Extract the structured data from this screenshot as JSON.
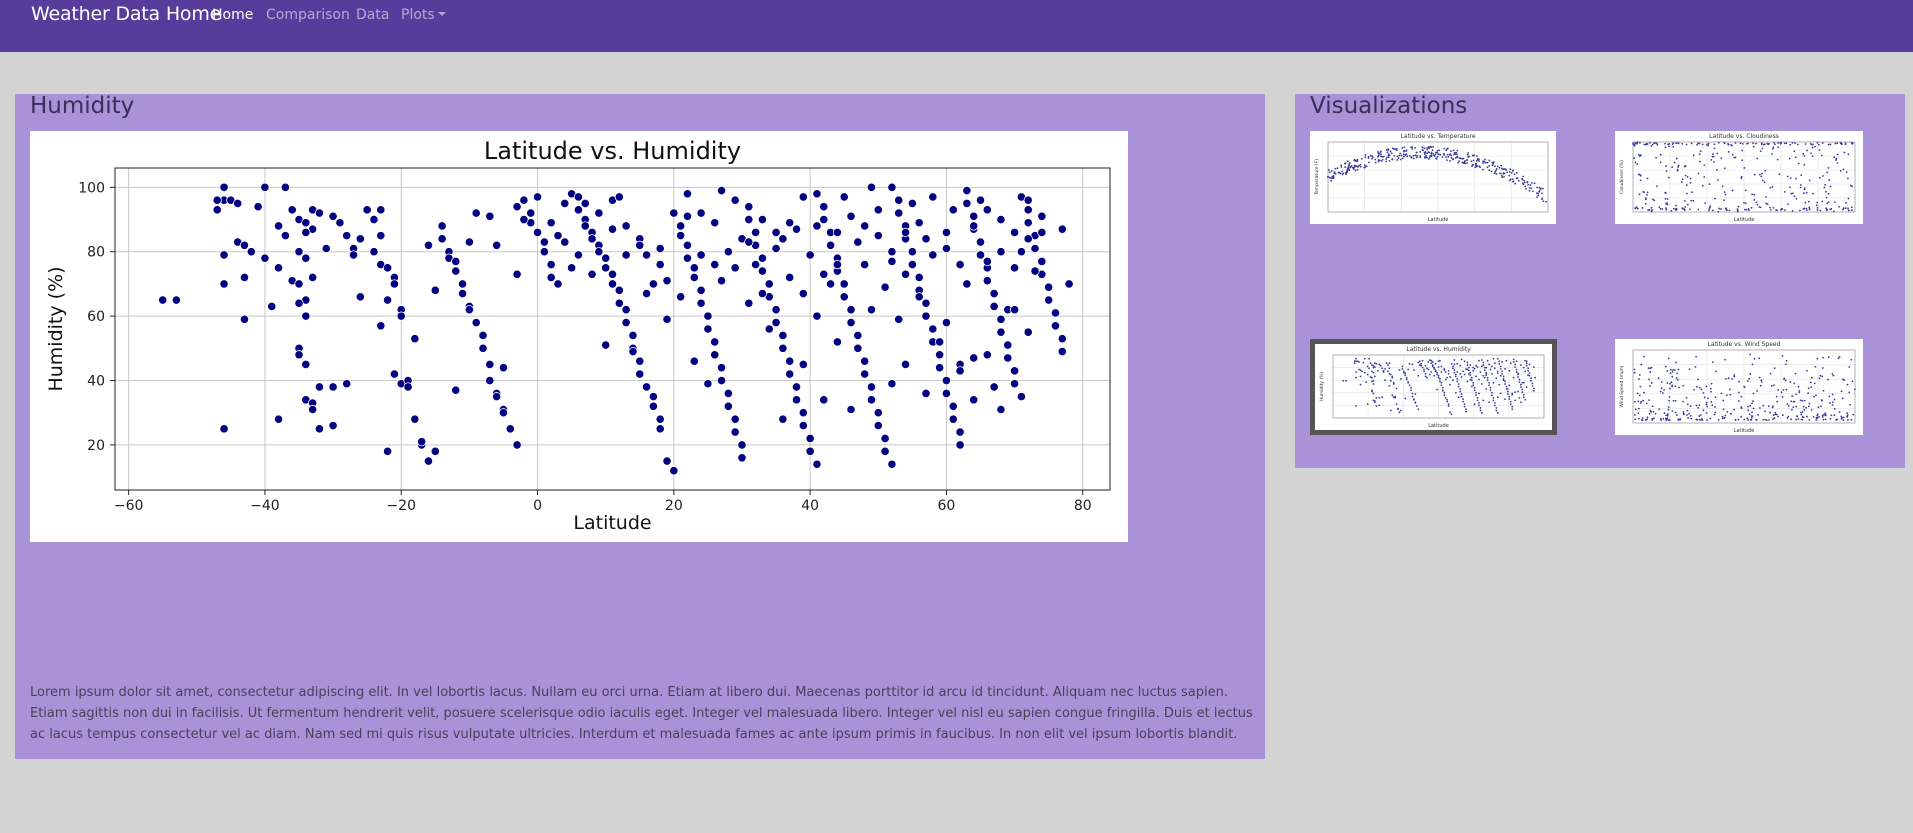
{
  "nav": {
    "brand": "Weather Data Home",
    "links": [
      {
        "label": "Home",
        "active": true
      },
      {
        "label": "Comparison",
        "active": false
      },
      {
        "label": "Data",
        "active": false
      },
      {
        "label": "Plots",
        "active": false
      }
    ],
    "color": "#563d9c"
  },
  "main": {
    "title": "Humidity",
    "body_text": "Lorem ipsum dolor sit amet, consectetur adipiscing elit. In vel lobortis lacus. Nullam eu orci urna. Etiam at libero dui. Maecenas porttitor id arcu id tincidunt. Aliquam nec luctus sapien. Etiam sagittis non dui in facilisis. Ut fermentum hendrerit velit, posuere scelerisque odio iaculis eget. Integer vel malesuada libero. Integer vel nisl eu sapien congue fringilla. Duis et lectus ac lacus tempus consectetur vel ac diam. Nam sed mi quis risus vulputate ultricies. Interdum et malesuada fames ac ante ipsum primis in faucibus. In non elit vel ipsum lobortis blandit."
  },
  "sidebar": {
    "title": "Visualizations",
    "thumbnails": [
      {
        "title": "Latitude vs. Temperature",
        "ylabel": "Temperature (F)",
        "xlabel": "Latitude",
        "selected": false
      },
      {
        "title": "Latitude vs. Cloudiness",
        "ylabel": "Cloudiness (%)",
        "xlabel": "Latitude",
        "selected": false
      },
      {
        "title": "Latitude vs. Humidity",
        "ylabel": "Humidity (%)",
        "xlabel": "Latitude",
        "selected": true
      },
      {
        "title": "Latitude vs. Wind Speed",
        "ylabel": "Wind Speed (mph)",
        "xlabel": "Latitude",
        "selected": false
      }
    ]
  },
  "chart_data": {
    "type": "scatter",
    "title": "Latitude vs. Humidity",
    "xlabel": "Latitude",
    "ylabel": "Humidity (%)",
    "xlim": [
      -62,
      84
    ],
    "ylim": [
      6,
      106
    ],
    "xticks": [
      -60,
      -40,
      -20,
      0,
      20,
      40,
      60,
      80
    ],
    "yticks": [
      20,
      40,
      60,
      80,
      100
    ],
    "grid": true,
    "marker_color": "#000080",
    "points": [
      [
        -55,
        65
      ],
      [
        -53,
        65
      ],
      [
        -46,
        100
      ],
      [
        -46,
        96
      ],
      [
        -45,
        96
      ],
      [
        -47,
        93
      ],
      [
        -46,
        79
      ],
      [
        -46,
        70
      ],
      [
        -46,
        25
      ],
      [
        -44,
        83
      ],
      [
        -43,
        82
      ],
      [
        -42,
        80
      ],
      [
        -43,
        72
      ],
      [
        -43,
        59
      ],
      [
        -41,
        94
      ],
      [
        -39,
        63
      ],
      [
        -38,
        75
      ],
      [
        -38,
        88
      ],
      [
        -37,
        100
      ],
      [
        -37,
        85
      ],
      [
        -36,
        93
      ],
      [
        -35,
        90
      ],
      [
        -34,
        89
      ],
      [
        -36,
        71
      ],
      [
        -35,
        80
      ],
      [
        -34,
        78
      ],
      [
        -33,
        93
      ],
      [
        -32,
        92
      ],
      [
        -33,
        87
      ],
      [
        -34,
        86
      ],
      [
        -35,
        70
      ],
      [
        -33,
        72
      ],
      [
        -34,
        65
      ],
      [
        -35,
        64
      ],
      [
        -34,
        60
      ],
      [
        -35,
        50
      ],
      [
        -35,
        48
      ],
      [
        -34,
        45
      ],
      [
        -34,
        34
      ],
      [
        -33,
        33
      ],
      [
        -33,
        31
      ],
      [
        -32,
        38
      ],
      [
        -32,
        25
      ],
      [
        -30,
        26
      ],
      [
        -30,
        38
      ],
      [
        -29,
        89
      ],
      [
        -28,
        85
      ],
      [
        -27,
        81
      ],
      [
        -27,
        79
      ],
      [
        -26,
        84
      ],
      [
        -25,
        93
      ],
      [
        -24,
        90
      ],
      [
        -23,
        93
      ],
      [
        -23,
        85
      ],
      [
        -23,
        76
      ],
      [
        -22,
        75
      ],
      [
        -21,
        72
      ],
      [
        -22,
        65
      ],
      [
        -23,
        57
      ],
      [
        -21,
        70
      ],
      [
        -20,
        62
      ],
      [
        -20,
        60
      ],
      [
        -21,
        42
      ],
      [
        -20,
        39
      ],
      [
        -19,
        40
      ],
      [
        -19,
        38
      ],
      [
        -18,
        28
      ],
      [
        -17,
        20
      ],
      [
        -17,
        21
      ],
      [
        -16,
        15
      ],
      [
        -15,
        18
      ],
      [
        -14,
        88
      ],
      [
        -14,
        84
      ],
      [
        -13,
        80
      ],
      [
        -13,
        78
      ],
      [
        -12,
        77
      ],
      [
        -12,
        74
      ],
      [
        -11,
        70
      ],
      [
        -11,
        67
      ],
      [
        -10,
        63
      ],
      [
        -10,
        62
      ],
      [
        -9,
        58
      ],
      [
        -8,
        54
      ],
      [
        -8,
        50
      ],
      [
        -7,
        45
      ],
      [
        -7,
        40
      ],
      [
        -6,
        36
      ],
      [
        -6,
        35
      ],
      [
        -5,
        31
      ],
      [
        -5,
        30
      ],
      [
        -4,
        25
      ],
      [
        -3,
        20
      ],
      [
        -2,
        96
      ],
      [
        -1,
        92
      ],
      [
        -1,
        89
      ],
      [
        0,
        86
      ],
      [
        1,
        83
      ],
      [
        1,
        80
      ],
      [
        2,
        76
      ],
      [
        2,
        72
      ],
      [
        3,
        70
      ],
      [
        4,
        95
      ],
      [
        5,
        98
      ],
      [
        6,
        97
      ],
      [
        6,
        93
      ],
      [
        7,
        90
      ],
      [
        7,
        88
      ],
      [
        8,
        86
      ],
      [
        8,
        84
      ],
      [
        9,
        82
      ],
      [
        9,
        80
      ],
      [
        10,
        78
      ],
      [
        10,
        75
      ],
      [
        11,
        73
      ],
      [
        11,
        70
      ],
      [
        12,
        68
      ],
      [
        12,
        64
      ],
      [
        13,
        62
      ],
      [
        13,
        58
      ],
      [
        14,
        54
      ],
      [
        14,
        50
      ],
      [
        15,
        46
      ],
      [
        15,
        42
      ],
      [
        16,
        38
      ],
      [
        17,
        35
      ],
      [
        17,
        32
      ],
      [
        18,
        28
      ],
      [
        18,
        25
      ],
      [
        19,
        15
      ],
      [
        20,
        12
      ],
      [
        21,
        88
      ],
      [
        21,
        85
      ],
      [
        22,
        82
      ],
      [
        22,
        78
      ],
      [
        23,
        75
      ],
      [
        23,
        72
      ],
      [
        24,
        68
      ],
      [
        24,
        64
      ],
      [
        25,
        60
      ],
      [
        25,
        56
      ],
      [
        26,
        52
      ],
      [
        26,
        48
      ],
      [
        27,
        44
      ],
      [
        27,
        40
      ],
      [
        28,
        36
      ],
      [
        28,
        32
      ],
      [
        29,
        28
      ],
      [
        29,
        24
      ],
      [
        30,
        20
      ],
      [
        30,
        16
      ],
      [
        31,
        94
      ],
      [
        31,
        90
      ],
      [
        32,
        86
      ],
      [
        32,
        82
      ],
      [
        33,
        78
      ],
      [
        33,
        74
      ],
      [
        34,
        70
      ],
      [
        34,
        66
      ],
      [
        35,
        62
      ],
      [
        35,
        58
      ],
      [
        36,
        54
      ],
      [
        36,
        50
      ],
      [
        37,
        46
      ],
      [
        37,
        42
      ],
      [
        38,
        38
      ],
      [
        38,
        34
      ],
      [
        39,
        30
      ],
      [
        39,
        26
      ],
      [
        40,
        22
      ],
      [
        40,
        18
      ],
      [
        41,
        14
      ],
      [
        41,
        98
      ],
      [
        42,
        94
      ],
      [
        42,
        90
      ],
      [
        43,
        86
      ],
      [
        43,
        82
      ],
      [
        44,
        78
      ],
      [
        44,
        74
      ],
      [
        45,
        70
      ],
      [
        45,
        66
      ],
      [
        46,
        62
      ],
      [
        46,
        58
      ],
      [
        47,
        54
      ],
      [
        47,
        50
      ],
      [
        48,
        46
      ],
      [
        48,
        42
      ],
      [
        49,
        38
      ],
      [
        49,
        34
      ],
      [
        50,
        30
      ],
      [
        50,
        26
      ],
      [
        51,
        22
      ],
      [
        51,
        18
      ],
      [
        52,
        14
      ],
      [
        52,
        100
      ],
      [
        53,
        96
      ],
      [
        53,
        92
      ],
      [
        54,
        88
      ],
      [
        54,
        84
      ],
      [
        55,
        80
      ],
      [
        55,
        76
      ],
      [
        56,
        72
      ],
      [
        56,
        68
      ],
      [
        57,
        64
      ],
      [
        57,
        60
      ],
      [
        58,
        56
      ],
      [
        58,
        52
      ],
      [
        59,
        48
      ],
      [
        59,
        44
      ],
      [
        60,
        40
      ],
      [
        60,
        36
      ],
      [
        61,
        32
      ],
      [
        61,
        28
      ],
      [
        62,
        24
      ],
      [
        62,
        20
      ],
      [
        63,
        99
      ],
      [
        63,
        95
      ],
      [
        64,
        91
      ],
      [
        64,
        87
      ],
      [
        65,
        83
      ],
      [
        65,
        79
      ],
      [
        66,
        75
      ],
      [
        66,
        71
      ],
      [
        67,
        67
      ],
      [
        67,
        63
      ],
      [
        68,
        59
      ],
      [
        68,
        55
      ],
      [
        69,
        51
      ],
      [
        69,
        47
      ],
      [
        70,
        43
      ],
      [
        70,
        39
      ],
      [
        71,
        35
      ],
      [
        71,
        97
      ],
      [
        72,
        93
      ],
      [
        72,
        89
      ],
      [
        73,
        85
      ],
      [
        73,
        81
      ],
      [
        74,
        77
      ],
      [
        74,
        73
      ],
      [
        75,
        69
      ],
      [
        75,
        65
      ],
      [
        76,
        61
      ],
      [
        76,
        57
      ],
      [
        77,
        53
      ],
      [
        77,
        49
      ],
      [
        78,
        70
      ],
      [
        77,
        87
      ],
      [
        -44,
        95
      ],
      [
        -40,
        78
      ],
      [
        -31,
        81
      ],
      [
        -26,
        66
      ],
      [
        -18,
        53
      ],
      [
        -15,
        68
      ],
      [
        -9,
        92
      ],
      [
        -6,
        82
      ],
      [
        -3,
        94
      ],
      [
        3,
        85
      ],
      [
        5,
        75
      ],
      [
        7,
        95
      ],
      [
        9,
        92
      ],
      [
        11,
        96
      ],
      [
        13,
        88
      ],
      [
        15,
        84
      ],
      [
        16,
        79
      ],
      [
        18,
        76
      ],
      [
        20,
        92
      ],
      [
        22,
        98
      ],
      [
        24,
        92
      ],
      [
        26,
        89
      ],
      [
        27,
        99
      ],
      [
        29,
        96
      ],
      [
        30,
        84
      ],
      [
        32,
        76
      ],
      [
        33,
        67
      ],
      [
        35,
        81
      ],
      [
        36,
        84
      ],
      [
        37,
        72
      ],
      [
        38,
        87
      ],
      [
        39,
        67
      ],
      [
        40,
        79
      ],
      [
        41,
        60
      ],
      [
        43,
        70
      ],
      [
        44,
        86
      ],
      [
        45,
        97
      ],
      [
        47,
        83
      ],
      [
        48,
        76
      ],
      [
        49,
        100
      ],
      [
        50,
        93
      ],
      [
        51,
        69
      ],
      [
        52,
        80
      ],
      [
        53,
        59
      ],
      [
        54,
        73
      ],
      [
        55,
        95
      ],
      [
        56,
        66
      ],
      [
        57,
        84
      ],
      [
        58,
        97
      ],
      [
        59,
        52
      ],
      [
        60,
        81
      ],
      [
        61,
        93
      ],
      [
        62,
        45
      ],
      [
        63,
        70
      ],
      [
        64,
        47
      ],
      [
        65,
        96
      ],
      [
        66,
        77
      ],
      [
        67,
        38
      ],
      [
        68,
        90
      ],
      [
        69,
        62
      ],
      [
        70,
        86
      ],
      [
        71,
        80
      ],
      [
        72,
        96
      ],
      [
        73,
        74
      ],
      [
        -38,
        28
      ],
      [
        -28,
        39
      ],
      [
        -22,
        18
      ],
      [
        -12,
        37
      ],
      [
        -5,
        44
      ],
      [
        -3,
        73
      ],
      [
        2,
        89
      ],
      [
        4,
        83
      ],
      [
        10,
        51
      ],
      [
        12,
        97
      ],
      [
        14,
        49
      ],
      [
        16,
        67
      ],
      [
        18,
        81
      ],
      [
        19,
        59
      ],
      [
        21,
        66
      ],
      [
        23,
        46
      ],
      [
        25,
        39
      ],
      [
        28,
        80
      ],
      [
        31,
        64
      ],
      [
        34,
        56
      ],
      [
        36,
        28
      ],
      [
        39,
        45
      ],
      [
        42,
        34
      ],
      [
        44,
        52
      ],
      [
        46,
        31
      ],
      [
        49,
        62
      ],
      [
        52,
        39
      ],
      [
        54,
        45
      ],
      [
        57,
        36
      ],
      [
        60,
        58
      ],
      [
        62,
        43
      ],
      [
        64,
        34
      ],
      [
        66,
        48
      ],
      [
        68,
        31
      ],
      [
        70,
        62
      ],
      [
        72,
        55
      ],
      [
        74,
        91
      ],
      [
        -47,
        96
      ],
      [
        -40,
        100
      ],
      [
        -30,
        91
      ],
      [
        -24,
        80
      ],
      [
        -16,
        82
      ],
      [
        -10,
        83
      ],
      [
        -7,
        91
      ],
      [
        -2,
        90
      ],
      [
        0,
        97
      ],
      [
        6,
        79
      ],
      [
        8,
        73
      ],
      [
        11,
        87
      ],
      [
        13,
        79
      ],
      [
        15,
        82
      ],
      [
        17,
        70
      ],
      [
        19,
        71
      ],
      [
        22,
        91
      ],
      [
        24,
        79
      ],
      [
        26,
        76
      ],
      [
        27,
        71
      ],
      [
        29,
        75
      ],
      [
        31,
        83
      ],
      [
        33,
        90
      ],
      [
        35,
        86
      ],
      [
        37,
        89
      ],
      [
        39,
        97
      ],
      [
        41,
        88
      ],
      [
        42,
        73
      ],
      [
        44,
        76
      ],
      [
        46,
        91
      ],
      [
        48,
        88
      ],
      [
        50,
        85
      ],
      [
        52,
        77
      ],
      [
        54,
        86
      ],
      [
        56,
        89
      ],
      [
        58,
        79
      ],
      [
        60,
        86
      ],
      [
        62,
        76
      ],
      [
        64,
        88
      ],
      [
        66,
        93
      ],
      [
        68,
        80
      ],
      [
        70,
        75
      ],
      [
        72,
        84
      ],
      [
        74,
        86
      ]
    ]
  }
}
